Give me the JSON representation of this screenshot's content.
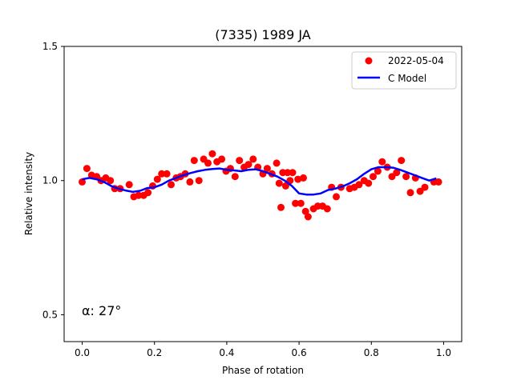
{
  "chart_data": {
    "type": "scatter",
    "title": "(7335) 1989 JA",
    "xlabel": "Phase of rotation",
    "ylabel": "Relative intensity",
    "xlim": [
      -0.05,
      1.05
    ],
    "ylim": [
      0.4,
      1.5
    ],
    "xticks": [
      0.0,
      0.2,
      0.4,
      0.6,
      0.8,
      1.0
    ],
    "xtick_labels": [
      "0.0",
      "0.2",
      "0.4",
      "0.6",
      "0.8",
      "1.0"
    ],
    "yticks": [
      0.5,
      1.0,
      1.5
    ],
    "ytick_labels": [
      "0.5",
      "1.0",
      "1.5"
    ],
    "annotation": "α: 27°",
    "legend_position": "upper right",
    "series": [
      {
        "name": "2022-05-04",
        "kind": "points",
        "color": "#ff0000",
        "x": [
          0.0,
          0.013,
          0.026,
          0.04,
          0.052,
          0.065,
          0.078,
          0.09,
          0.105,
          0.13,
          0.143,
          0.156,
          0.17,
          0.182,
          0.195,
          0.208,
          0.22,
          0.234,
          0.246,
          0.26,
          0.272,
          0.285,
          0.298,
          0.31,
          0.323,
          0.336,
          0.348,
          0.36,
          0.373,
          0.386,
          0.398,
          0.41,
          0.423,
          0.435,
          0.448,
          0.46,
          0.473,
          0.486,
          0.5,
          0.512,
          0.525,
          0.538,
          0.545,
          0.55,
          0.555,
          0.563,
          0.568,
          0.575,
          0.582,
          0.59,
          0.597,
          0.605,
          0.612,
          0.618,
          0.625,
          0.64,
          0.652,
          0.665,
          0.678,
          0.69,
          0.703,
          0.716,
          0.74,
          0.753,
          0.766,
          0.78,
          0.792,
          0.805,
          0.818,
          0.83,
          0.844,
          0.857,
          0.87,
          0.883,
          0.896,
          0.908,
          0.922,
          0.935,
          0.948,
          0.973,
          0.986
        ],
        "y": [
          0.995,
          1.045,
          1.02,
          1.015,
          1.0,
          1.01,
          1.0,
          0.97,
          0.97,
          0.985,
          0.94,
          0.945,
          0.945,
          0.955,
          0.98,
          1.005,
          1.025,
          1.025,
          0.985,
          1.01,
          1.015,
          1.025,
          0.995,
          1.075,
          1.0,
          1.08,
          1.065,
          1.1,
          1.07,
          1.08,
          1.035,
          1.045,
          1.015,
          1.075,
          1.05,
          1.06,
          1.08,
          1.05,
          1.025,
          1.045,
          1.025,
          1.065,
          0.99,
          0.9,
          1.03,
          0.98,
          1.03,
          1.0,
          1.03,
          0.915,
          1.005,
          0.915,
          1.01,
          0.885,
          0.865,
          0.895,
          0.905,
          0.905,
          0.895,
          0.975,
          0.94,
          0.975,
          0.97,
          0.975,
          0.985,
          1.0,
          0.99,
          1.015,
          1.035,
          1.07,
          1.05,
          1.015,
          1.03,
          1.075,
          1.015,
          0.955,
          1.01,
          0.96,
          0.975,
          0.995,
          0.995
        ]
      },
      {
        "name": "C Model",
        "kind": "line",
        "color": "#0000ff",
        "x": [
          0.0,
          0.02,
          0.04,
          0.06,
          0.08,
          0.1,
          0.12,
          0.14,
          0.16,
          0.18,
          0.2,
          0.22,
          0.24,
          0.26,
          0.28,
          0.3,
          0.32,
          0.34,
          0.36,
          0.38,
          0.4,
          0.42,
          0.44,
          0.46,
          0.48,
          0.5,
          0.52,
          0.54,
          0.56,
          0.58,
          0.6,
          0.62,
          0.64,
          0.66,
          0.68,
          0.7,
          0.72,
          0.74,
          0.76,
          0.78,
          0.8,
          0.82,
          0.84,
          0.86,
          0.88,
          0.9,
          0.92,
          0.94,
          0.96,
          0.98
        ],
        "y": [
          1.005,
          1.01,
          1.005,
          0.995,
          0.98,
          0.97,
          0.963,
          0.958,
          0.962,
          0.972,
          0.975,
          0.985,
          1.0,
          1.01,
          1.02,
          1.028,
          1.035,
          1.04,
          1.043,
          1.045,
          1.04,
          1.038,
          1.035,
          1.04,
          1.042,
          1.035,
          1.025,
          1.015,
          1.0,
          0.98,
          0.952,
          0.948,
          0.948,
          0.952,
          0.965,
          0.97,
          0.978,
          0.99,
          1.005,
          1.025,
          1.042,
          1.05,
          1.05,
          1.048,
          1.04,
          1.03,
          1.02,
          1.01,
          1.0,
          1.008
        ]
      }
    ]
  }
}
